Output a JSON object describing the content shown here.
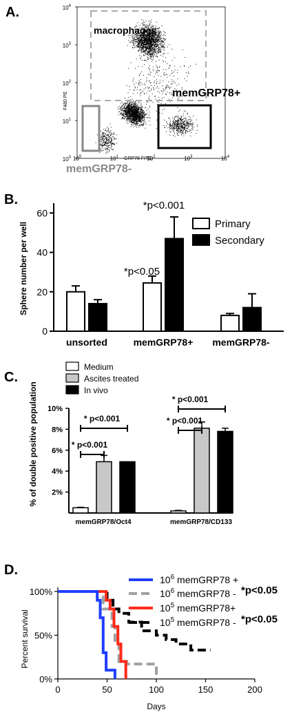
{
  "panels": {
    "a": {
      "label": "A.",
      "ylabel": "F480 PE",
      "xlabel": "GRP78 FITC",
      "gates": {
        "macrophages": "macrophages",
        "memGRP78plus": "memGRP78+",
        "memGRP78minus": "memGRP78-"
      },
      "tick_base": "10",
      "y_exponents": [
        "4",
        "3",
        "2",
        "1",
        "0"
      ],
      "x_exponents": [
        "0",
        "1",
        "2",
        "3",
        "4"
      ],
      "colors": {
        "dots": "#000000",
        "macrophage_gate": "#aaaaaa",
        "minus_gate": "#888888",
        "plus_gate": "#000000"
      }
    },
    "b": {
      "label": "B."
    },
    "c": {
      "label": "C."
    },
    "d": {
      "label": "D."
    }
  },
  "chart_data": [
    {
      "type": "scatter",
      "panel": "A",
      "ylabel": "F480 PE",
      "xlabel": "GRP78 FITC",
      "scale": "log",
      "xlim": [
        1,
        10000
      ],
      "ylim": [
        1,
        10000
      ],
      "gates": [
        "macrophages",
        "memGRP78+",
        "memGRP78-"
      ]
    },
    {
      "type": "bar",
      "panel": "B",
      "ylabel": "Sphere number per well",
      "categories": [
        "unsorted",
        "memGRP78+",
        "memGRP78-"
      ],
      "series": [
        {
          "name": "Primary",
          "values": [
            20,
            24.5,
            8
          ],
          "errors": [
            3,
            3.5,
            1
          ],
          "color": "#ffffff"
        },
        {
          "name": "Secondary",
          "values": [
            14,
            47,
            12
          ],
          "errors": [
            2,
            11,
            7
          ],
          "color": "#000000"
        }
      ],
      "ylim": [
        0,
        65
      ],
      "yticks": [
        "0",
        "20",
        "40",
        "60"
      ],
      "legend": "top-right",
      "annotations": [
        {
          "text": "*p<0.05",
          "category": "memGRP78+"
        },
        {
          "text": "*p<0.001",
          "category": "memGRP78+"
        }
      ]
    },
    {
      "type": "bar",
      "panel": "C",
      "ylabel": "% of double positive population",
      "categories": [
        "memGRP78/Oct4",
        "memGRP78/CD133"
      ],
      "series": [
        {
          "name": "Medium",
          "values": [
            0.5,
            0.2
          ],
          "errors": [
            0.05,
            0.05
          ],
          "color": "#ffffff"
        },
        {
          "name": "Ascites treated",
          "values": [
            4.9,
            8.1
          ],
          "errors": [
            0.6,
            0.6
          ],
          "color": "#c8c8c8"
        },
        {
          "name": "In vivo",
          "values": [
            4.9,
            7.8
          ],
          "errors": [
            0,
            0.3
          ],
          "color": "#000000"
        }
      ],
      "ylim": [
        0,
        10
      ],
      "yticks": [
        "2%",
        "4%",
        "6%",
        "8%",
        "10%"
      ],
      "legend": "top-left",
      "annotations": [
        {
          "text": "* p<0.001",
          "category": "memGRP78/Oct4",
          "from": "Medium",
          "to": "In vivo"
        },
        {
          "text": "* p<0.001",
          "category": "memGRP78/Oct4",
          "from": "Medium",
          "to": "Ascites treated"
        },
        {
          "text": "* p<0.001",
          "category": "memGRP78/CD133",
          "from": "Medium",
          "to": "In vivo"
        },
        {
          "text": "* p<0.001",
          "category": "memGRP78/CD133",
          "from": "Medium",
          "to": "Ascites treated"
        }
      ]
    },
    {
      "type": "line",
      "panel": "D",
      "ylabel": "Percent survival",
      "xlabel": "Days",
      "xlim": [
        0,
        200
      ],
      "ylim": [
        0,
        100
      ],
      "xticks": [
        "0",
        "50",
        "100",
        "150",
        "200"
      ],
      "yticks": [
        "0%",
        "50%",
        "100%"
      ],
      "legend": "top-right",
      "series": [
        {
          "name_base": "10",
          "name_exp": "6",
          "name_text": " memGRP78 +",
          "color": "#1f3fff",
          "dash": "solid",
          "points": [
            [
              0,
              100
            ],
            [
              40,
              100
            ],
            [
              40,
              90
            ],
            [
              43,
              90
            ],
            [
              43,
              70
            ],
            [
              46,
              70
            ],
            [
              46,
              30
            ],
            [
              49,
              30
            ],
            [
              49,
              10
            ],
            [
              58,
              10
            ],
            [
              58,
              0
            ]
          ]
        },
        {
          "name_base": "10",
          "name_exp": "6",
          "name_text": " memGRP78 -",
          "color": "#a0a0a0",
          "dash": "dashed",
          "points": [
            [
              0,
              100
            ],
            [
              46,
              100
            ],
            [
              46,
              80
            ],
            [
              55,
              80
            ],
            [
              55,
              60
            ],
            [
              58,
              60
            ],
            [
              58,
              40
            ],
            [
              62,
              40
            ],
            [
              62,
              20
            ],
            [
              70,
              20
            ],
            [
              70,
              17
            ],
            [
              100,
              17
            ],
            [
              100,
              0
            ]
          ]
        },
        {
          "name_base": "10",
          "name_exp": "5",
          "name_text": " memGRP78+",
          "color": "#ff2a1a",
          "dash": "solid",
          "points": [
            [
              0,
              100
            ],
            [
              49,
              100
            ],
            [
              49,
              90
            ],
            [
              53,
              90
            ],
            [
              53,
              80
            ],
            [
              57,
              80
            ],
            [
              57,
              60
            ],
            [
              61,
              60
            ],
            [
              61,
              40
            ],
            [
              64,
              40
            ],
            [
              64,
              20
            ],
            [
              69,
              20
            ],
            [
              69,
              0
            ]
          ]
        },
        {
          "name_base": "10",
          "name_exp": "5",
          "name_text": " memGRP78 -",
          "color": "#000000",
          "dash": "dashed",
          "points": [
            [
              0,
              100
            ],
            [
              50,
              100
            ],
            [
              50,
              90
            ],
            [
              56,
              90
            ],
            [
              56,
              80
            ],
            [
              62,
              80
            ],
            [
              62,
              75
            ],
            [
              72,
              75
            ],
            [
              72,
              65
            ],
            [
              85,
              65
            ],
            [
              85,
              55
            ],
            [
              100,
              55
            ],
            [
              100,
              50
            ],
            [
              110,
              50
            ],
            [
              110,
              45
            ],
            [
              120,
              45
            ],
            [
              120,
              40
            ],
            [
              135,
              40
            ],
            [
              135,
              33
            ],
            [
              155,
              33
            ]
          ]
        }
      ],
      "annotations": [
        "*p<0.05",
        "*p<0.05"
      ]
    }
  ]
}
